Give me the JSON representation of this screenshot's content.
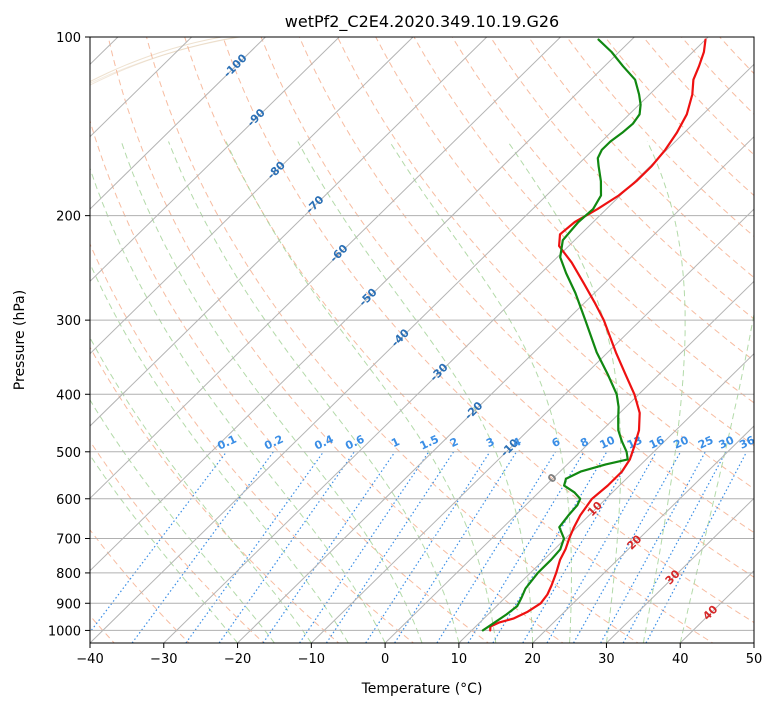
{
  "chart_data": {
    "type": "line",
    "diagram": "skew-t log-p",
    "title": "wetPf2_C2E4.2020.349.10.19.G26",
    "xlabel": "Temperature (°C)",
    "ylabel": "Pressure (hPa)",
    "xlim": [
      -40,
      50
    ],
    "ylim_pressure": [
      1050,
      100
    ],
    "x_ticks": [
      -40,
      -30,
      -20,
      -10,
      0,
      10,
      20,
      30,
      40,
      50
    ],
    "x_tick_labels": [
      "−40",
      "−30",
      "−20",
      "−10",
      "0",
      "10",
      "20",
      "30",
      "40",
      "50"
    ],
    "pressure_ticks": [
      1000,
      900,
      800,
      700,
      600,
      500,
      400,
      300,
      200,
      100
    ],
    "pressure_tick_labels": [
      "1000",
      "900",
      "800",
      "700",
      "600",
      "500",
      "400",
      "300",
      "200",
      "100"
    ],
    "isotherm_labels": [
      "-100",
      "-90",
      "-80",
      "-70",
      "-60",
      "-50",
      "-40",
      "-30",
      "-20",
      "-10",
      "0",
      "10",
      "20",
      "30",
      "40"
    ],
    "mixing_ratio_labels": [
      "0.1",
      "0.2",
      "0.4",
      "0.6",
      "1",
      "1.5",
      "2",
      "3",
      "4",
      "6",
      "8",
      "10",
      "13",
      "16",
      "20",
      "25",
      "30",
      "36"
    ],
    "mixing_ratio_values": [
      0.1,
      0.2,
      0.4,
      0.6,
      1,
      1.5,
      2,
      3,
      4,
      6,
      8,
      10,
      13,
      16,
      20,
      25,
      30,
      36
    ],
    "series": [
      {
        "name": "Temperature",
        "color": "#ee1111",
        "points": [
          {
            "p": 1000,
            "t": 12.5
          },
          {
            "p": 985,
            "t": 12.0
          },
          {
            "p": 970,
            "t": 12.6
          },
          {
            "p": 955,
            "t": 14.0
          },
          {
            "p": 930,
            "t": 15.0
          },
          {
            "p": 900,
            "t": 15.6
          },
          {
            "p": 870,
            "t": 15.3
          },
          {
            "p": 840,
            "t": 14.6
          },
          {
            "p": 800,
            "t": 13.5
          },
          {
            "p": 760,
            "t": 12.2
          },
          {
            "p": 730,
            "t": 11.5
          },
          {
            "p": 700,
            "t": 10.5
          },
          {
            "p": 670,
            "t": 9.6
          },
          {
            "p": 640,
            "t": 8.8
          },
          {
            "p": 600,
            "t": 8.1
          },
          {
            "p": 570,
            "t": 8.4
          },
          {
            "p": 540,
            "t": 8.4
          },
          {
            "p": 515,
            "t": 7.8
          },
          {
            "p": 490,
            "t": 6.6
          },
          {
            "p": 460,
            "t": 5.0
          },
          {
            "p": 430,
            "t": 2.7
          },
          {
            "p": 400,
            "t": -0.6
          },
          {
            "p": 370,
            "t": -4.6
          },
          {
            "p": 340,
            "t": -8.9
          },
          {
            "p": 300,
            "t": -15.0
          },
          {
            "p": 280,
            "t": -18.7
          },
          {
            "p": 260,
            "t": -22.8
          },
          {
            "p": 240,
            "t": -27.3
          },
          {
            "p": 225,
            "t": -31.3
          },
          {
            "p": 215,
            "t": -32.8
          },
          {
            "p": 205,
            "t": -32.5
          },
          {
            "p": 195,
            "t": -31.2
          },
          {
            "p": 185,
            "t": -30.2
          },
          {
            "p": 175,
            "t": -29.8
          },
          {
            "p": 165,
            "t": -29.8
          },
          {
            "p": 155,
            "t": -30.2
          },
          {
            "p": 145,
            "t": -31.0
          },
          {
            "p": 135,
            "t": -32.2
          },
          {
            "p": 125,
            "t": -34.2
          },
          {
            "p": 118,
            "t": -36.1
          },
          {
            "p": 112,
            "t": -37.2
          },
          {
            "p": 106,
            "t": -38.5
          },
          {
            "p": 101,
            "t": -40.0
          }
        ]
      },
      {
        "name": "Dewpoint",
        "color": "#118811",
        "points": [
          {
            "p": 1000,
            "t": 11.5
          },
          {
            "p": 970,
            "t": 12.0
          },
          {
            "p": 940,
            "t": 12.5
          },
          {
            "p": 910,
            "t": 12.8
          },
          {
            "p": 880,
            "t": 12.2
          },
          {
            "p": 850,
            "t": 11.5
          },
          {
            "p": 800,
            "t": 11.0
          },
          {
            "p": 760,
            "t": 11.0
          },
          {
            "p": 730,
            "t": 10.8
          },
          {
            "p": 700,
            "t": 9.8
          },
          {
            "p": 670,
            "t": 7.6
          },
          {
            "p": 640,
            "t": 7.2
          },
          {
            "p": 615,
            "t": 7.0
          },
          {
            "p": 600,
            "t": 6.5
          },
          {
            "p": 585,
            "t": 4.8
          },
          {
            "p": 570,
            "t": 2.5
          },
          {
            "p": 555,
            "t": 1.8
          },
          {
            "p": 540,
            "t": 2.8
          },
          {
            "p": 525,
            "t": 5.2
          },
          {
            "p": 515,
            "t": 7.5
          },
          {
            "p": 500,
            "t": 6.3
          },
          {
            "p": 480,
            "t": 4.2
          },
          {
            "p": 460,
            "t": 2.2
          },
          {
            "p": 440,
            "t": 0.6
          },
          {
            "p": 420,
            "t": -1.0
          },
          {
            "p": 400,
            "t": -3.0
          },
          {
            "p": 370,
            "t": -7.0
          },
          {
            "p": 340,
            "t": -11.5
          },
          {
            "p": 300,
            "t": -17.5
          },
          {
            "p": 270,
            "t": -22.6
          },
          {
            "p": 250,
            "t": -26.6
          },
          {
            "p": 235,
            "t": -29.6
          },
          {
            "p": 220,
            "t": -31.6
          },
          {
            "p": 205,
            "t": -32.0
          },
          {
            "p": 195,
            "t": -31.8
          },
          {
            "p": 185,
            "t": -32.6
          },
          {
            "p": 175,
            "t": -34.6
          },
          {
            "p": 165,
            "t": -37.0
          },
          {
            "p": 160,
            "t": -38.2
          },
          {
            "p": 155,
            "t": -38.8
          },
          {
            "p": 150,
            "t": -38.8
          },
          {
            "p": 145,
            "t": -38.4
          },
          {
            "p": 140,
            "t": -38.2
          },
          {
            "p": 135,
            "t": -38.6
          },
          {
            "p": 130,
            "t": -39.8
          },
          {
            "p": 125,
            "t": -41.4
          },
          {
            "p": 118,
            "t": -44.0
          },
          {
            "p": 112,
            "t": -47.5
          },
          {
            "p": 106,
            "t": -51.0
          },
          {
            "p": 101,
            "t": -54.5
          }
        ]
      }
    ],
    "colors": {
      "isotherm_line": "#b4b4b4",
      "grid": "#b0b0b0",
      "dry_adiabat": "#f4a582",
      "moist_adiabat": "#a6d49a",
      "mixing_ratio": "#3a8ee6",
      "isotherm_label": "#2a6fb5",
      "isotherm_label_warm": "#d62728",
      "isotherm_label_zero": "#7f7f7f",
      "background_curves": "#e0c8a8"
    }
  }
}
